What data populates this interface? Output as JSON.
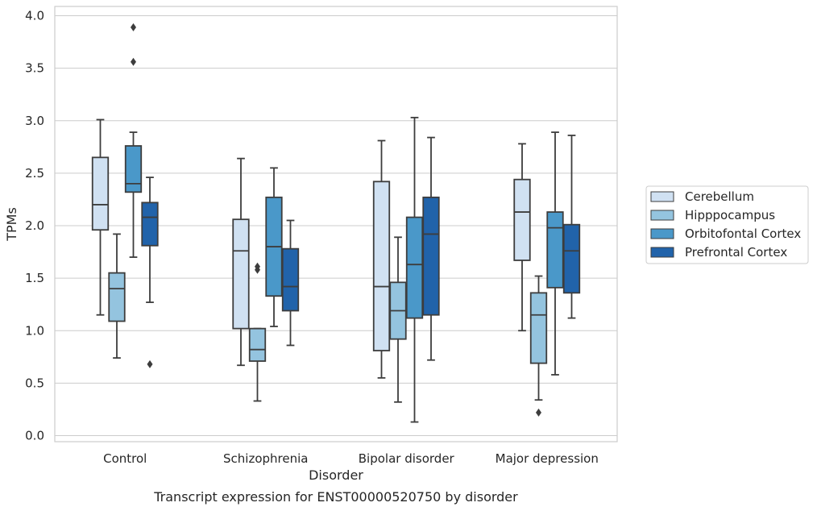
{
  "chart_data": {
    "type": "box",
    "caption": "Transcript expression for ENST00000520750 by disorder",
    "xlabel": "Disorder",
    "ylabel": "TPMs",
    "ylim": [
      -0.05,
      4.1
    ],
    "yticks": [
      "0.0",
      "0.5",
      "1.0",
      "1.5",
      "2.0",
      "2.5",
      "3.0",
      "3.5",
      "4.0"
    ],
    "categories": [
      "Control",
      "Schizophrenia",
      "Bipolar disorder",
      "Major depression"
    ],
    "grid": "horizontal",
    "legend_position": "right",
    "series": [
      {
        "name": "Cerebellum",
        "color": "#d0e1f2",
        "boxes": [
          {
            "whislo": 1.15,
            "q1": 1.96,
            "med": 2.2,
            "q3": 2.65,
            "whishi": 3.01,
            "fliers": []
          },
          {
            "whislo": 0.67,
            "q1": 1.02,
            "med": 1.76,
            "q3": 2.06,
            "whishi": 2.64,
            "fliers": []
          },
          {
            "whislo": 0.55,
            "q1": 0.81,
            "med": 1.42,
            "q3": 2.42,
            "whishi": 2.81,
            "fliers": []
          },
          {
            "whislo": 1.0,
            "q1": 1.67,
            "med": 2.13,
            "q3": 2.44,
            "whishi": 2.78,
            "fliers": []
          }
        ]
      },
      {
        "name": "Hipppocampus",
        "color": "#94c4df",
        "boxes": [
          {
            "whislo": 0.74,
            "q1": 1.09,
            "med": 1.4,
            "q3": 1.55,
            "whishi": 1.92,
            "fliers": []
          },
          {
            "whislo": 0.33,
            "q1": 0.71,
            "med": 0.82,
            "q3": 1.02,
            "whishi": 1.02,
            "fliers": [
              1.58,
              1.61
            ]
          },
          {
            "whislo": 0.32,
            "q1": 0.92,
            "med": 1.19,
            "q3": 1.46,
            "whishi": 1.89,
            "fliers": []
          },
          {
            "whislo": 0.34,
            "q1": 0.69,
            "med": 1.15,
            "q3": 1.36,
            "whishi": 1.52,
            "fliers": [
              0.22
            ]
          }
        ]
      },
      {
        "name": "Orbitofontal Cortex",
        "color": "#4a98c9",
        "boxes": [
          {
            "whislo": 1.7,
            "q1": 2.32,
            "med": 2.4,
            "q3": 2.76,
            "whishi": 2.89,
            "fliers": [
              3.56,
              3.89
            ]
          },
          {
            "whislo": 1.04,
            "q1": 1.33,
            "med": 1.8,
            "q3": 2.27,
            "whishi": 2.55,
            "fliers": []
          },
          {
            "whislo": 0.13,
            "q1": 1.12,
            "med": 1.63,
            "q3": 2.08,
            "whishi": 3.03,
            "fliers": []
          },
          {
            "whislo": 0.58,
            "q1": 1.41,
            "med": 1.98,
            "q3": 2.13,
            "whishi": 2.89,
            "fliers": []
          }
        ]
      },
      {
        "name": "Prefrontal Cortex",
        "color": "#2163aa",
        "boxes": [
          {
            "whislo": 1.27,
            "q1": 1.81,
            "med": 2.08,
            "q3": 2.22,
            "whishi": 2.46,
            "fliers": [
              0.68
            ]
          },
          {
            "whislo": 0.86,
            "q1": 1.19,
            "med": 1.42,
            "q3": 1.78,
            "whishi": 2.05,
            "fliers": []
          },
          {
            "whislo": 0.72,
            "q1": 1.15,
            "med": 1.92,
            "q3": 2.27,
            "whishi": 2.84,
            "fliers": []
          },
          {
            "whislo": 1.12,
            "q1": 1.36,
            "med": 1.76,
            "q3": 2.01,
            "whishi": 2.86,
            "fliers": []
          }
        ]
      }
    ]
  }
}
